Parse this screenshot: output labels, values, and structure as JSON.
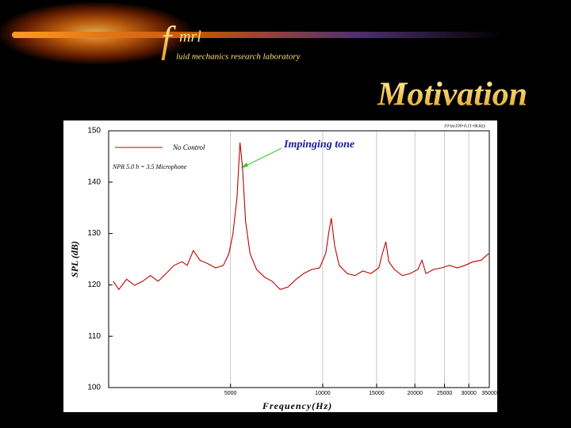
{
  "header": {
    "logo_letter": "f",
    "logo_text": "mrl",
    "lab_name": "luid mechanics research laboratory",
    "slide_title": "Motivation"
  },
  "chart_data": {
    "type": "line",
    "log_x": true,
    "grid": "x",
    "file_label": "10-au100-0.11-nk.key",
    "xlabel": "Frequency(Hz)",
    "ylabel": "SPL (dB)",
    "annotation": "NPR  5.0   h  =  3.5   Microphone",
    "callout": "Impinging tone",
    "legend_position": "upper left",
    "xlim": [
      2000,
      35000
    ],
    "ylim": [
      100,
      150
    ],
    "xticks": [
      5000,
      10000,
      15000,
      20000,
      25000,
      30000,
      35000
    ],
    "yticks": [
      100,
      110,
      120,
      130,
      140,
      150
    ],
    "x": [
      2070,
      2160,
      2290,
      2430,
      2580,
      2740,
      2900,
      3080,
      3270,
      3470,
      3610,
      3780,
      3970,
      4220,
      4470,
      4740,
      4940,
      5090,
      5250,
      5370,
      5470,
      5600,
      5790,
      6080,
      6460,
      6840,
      7260,
      7710,
      8190,
      8670,
      9200,
      9770,
      10230,
      10500,
      10670,
      10940,
      11320,
      12020,
      12740,
      13520,
      14360,
      15240,
      15670,
      16070,
      16440,
      17140,
      18200,
      19280,
      20460,
      21090,
      21730,
      23010,
      24430,
      25940,
      27540,
      29170,
      30970,
      32890,
      34830
    ],
    "series": [
      {
        "name": "No Control",
        "color": "#c00000",
        "values": [
          120.7,
          119.1,
          121.1,
          119.9,
          120.7,
          121.8,
          120.7,
          122.2,
          123.8,
          124.5,
          123.8,
          126.7,
          124.8,
          124.1,
          123.3,
          123.8,
          126.1,
          129.9,
          136.9,
          147.7,
          143.1,
          132.3,
          126.1,
          123.0,
          121.5,
          120.7,
          119.1,
          119.6,
          121.1,
          122.2,
          123.0,
          123.3,
          126.1,
          130.7,
          133.0,
          127.6,
          123.8,
          122.2,
          121.8,
          122.7,
          122.2,
          123.3,
          126.1,
          128.4,
          124.5,
          123.0,
          121.8,
          122.2,
          123.0,
          124.8,
          122.2,
          123.0,
          123.3,
          123.8,
          123.3,
          123.8,
          124.5,
          124.8,
          126.1
        ]
      }
    ]
  }
}
